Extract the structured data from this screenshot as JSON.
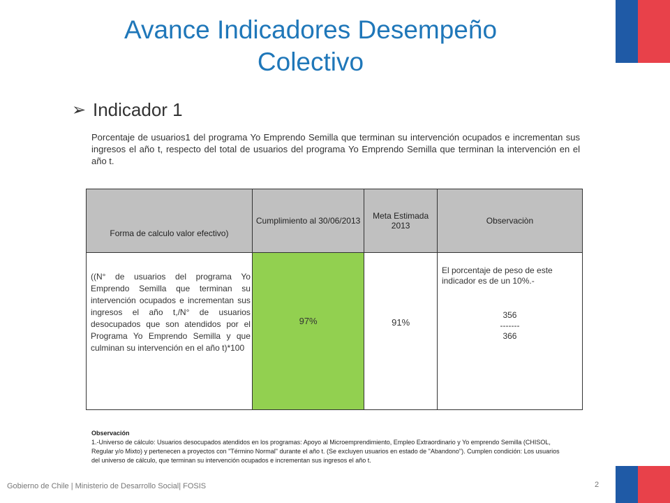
{
  "title": "Avance Indicadores Desempeño Colectivo",
  "bullet": {
    "icon": "arrow-bullet-icon",
    "text": "Indicador 1"
  },
  "description": "Porcentaje de usuarios1 del programa Yo Emprendo Semilla  que terminan su intervención ocupados e incrementan sus ingresos el año t, respecto del total de usuarios del programa Yo Emprendo Semilla que terminan la intervención en el año t.",
  "table": {
    "headers": [
      "Forma de calculo valor efectivo)",
      "Cumplimiento al 30/06/2013",
      "Meta Estimada 2013",
      "Observaciòn"
    ],
    "row": {
      "formula": "((N° de usuarios del programa Yo Emprendo Semilla que terminan su intervención ocupados e incrementan sus ingresos el año t,/N° de usuarios desocupados que son atendidos por el Programa Yo Emprendo Semilla  y que culminan su intervención  en el año t)*100",
      "cumplimiento": "97%",
      "meta": "91%",
      "observacion_peso": "El porcentaje  de peso de este indicador es de un 10%.-",
      "numerador": "356",
      "separador": "-------",
      "denominador": "366"
    },
    "colors": {
      "header_bg": "#c0c0c0",
      "highlight": "#92d050"
    }
  },
  "observacion": {
    "title": "Observación",
    "text": "1.-Universo de cálculo: Usuarios desocupados  atendidos en los programas: Apoyo al Microemprendimiento, Empleo Extraordinario  y Yo emprendo  Semilla (CHISOL, Regular y/o Mixto) y pertenecen a proyectos  con \"Término Normal\" durante el año t. (Se excluyen usuarios en estado de \"Abandono\"). Cumplen condición: Los usuarios del universo de cálculo, que terminan su intervención ocupados e incrementan sus ingresos el año t."
  },
  "footer": "Gobierno de Chile | Ministerio de  Desarrollo Social| FOSIS",
  "page_number": "2",
  "brand_colors": {
    "title": "#1f77b9",
    "flag_blue": "#1f5aa6",
    "flag_red": "#e8414a"
  }
}
